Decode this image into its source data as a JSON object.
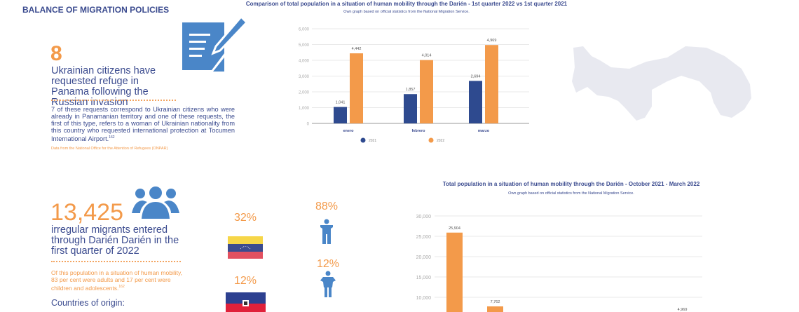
{
  "section_title": "BALANCE OF MIGRATION POLICIES",
  "ukraine": {
    "number": "8",
    "headline": "Ukrainian citizens have requested refuge in Panama following the Russian invasion",
    "body": "7 of these requests correspond to Ukrainian citizens who were already in Panamanian territory and one of these requests, the first of this type, refers to a woman of Ukrainian nationality from this country who requested international protection at Tocumen International Airport.",
    "footnote": "162",
    "source": "Data from the National Office for the Attention of Refugees (ONPAR)",
    "icon": "document-pen-icon"
  },
  "migrants": {
    "number": "13,425",
    "headline": "irregular migrants entered through Darién Darién in the first quarter of 2022",
    "body": "Of this population in a situation of human mobility, 83 per cent were adults and 17 per cent were children and adolescents.",
    "footnote": "162",
    "countries_heading": "Countries of origin:",
    "icon": "people-group-icon",
    "countries": [
      {
        "flag": "venezuela-flag",
        "percent": "32%"
      },
      {
        "flag": "haiti-flag",
        "percent": "12%"
      }
    ],
    "gender": [
      {
        "icon": "man-icon",
        "percent": "88%"
      },
      {
        "icon": "woman-icon",
        "percent": "12%"
      }
    ]
  },
  "colors": {
    "blue": "#2e4a8f",
    "orange": "#f39a4a",
    "icon_blue": "#4a86c8",
    "map": "#e8e9f0"
  },
  "chart_data": [
    {
      "type": "bar",
      "title": "Comparison of total population in a situation of human mobility through the Darién - 1st quarter 2022 vs 1st quarter 2021",
      "subtitle": "Own graph based on official statistics from the National Migration Service.",
      "categories": [
        "enero",
        "febrero",
        "marzo"
      ],
      "series": [
        {
          "name": "2021",
          "values": [
            1041,
            1857,
            2694
          ],
          "labels": [
            "1,041",
            "1,857",
            "2,694"
          ],
          "color": "#2e4a8f"
        },
        {
          "name": "2022",
          "values": [
            4442,
            4014,
            4969
          ],
          "labels": [
            "4,442",
            "4,014",
            "4,969"
          ],
          "color": "#f39a4a"
        }
      ],
      "ylim": [
        0,
        6000
      ],
      "yticks": [
        "0",
        "1,000",
        "2,000",
        "3,000",
        "4,000",
        "5,000",
        "6,000"
      ],
      "grid": true,
      "legend": "bottom"
    },
    {
      "type": "bar",
      "title": "Total population in a situation of human mobility through the Darién - October 2021 - March 2022",
      "subtitle": "Own graph based on official statistics from the National Migration Service.",
      "values": [
        25904,
        7762,
        null,
        null,
        null,
        4969
      ],
      "labels": [
        "25,904",
        "7,762",
        "",
        "",
        "",
        "4,969"
      ],
      "color": "#f39a4a",
      "ylim": [
        0,
        30000
      ],
      "yticks_visible": [
        "10,000",
        "15,000",
        "20,000",
        "25,000",
        "30,000"
      ],
      "grid": true
    }
  ]
}
